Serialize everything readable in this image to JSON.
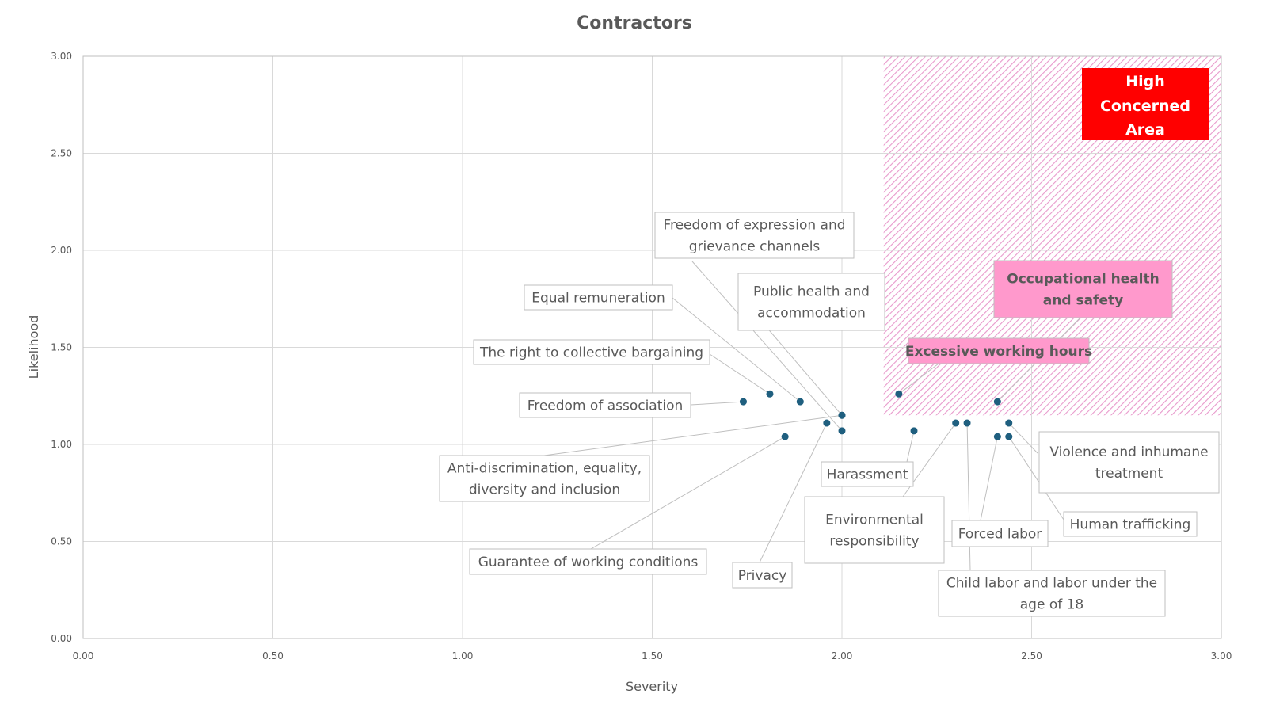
{
  "chart_data": {
    "type": "scatter",
    "title": "Contractors",
    "xlabel": "Severity",
    "ylabel": "Likelihood",
    "xlim": [
      0,
      3
    ],
    "ylim": [
      0,
      3
    ],
    "x_ticks": [
      "0.00",
      "0.50",
      "1.00",
      "1.50",
      "2.00",
      "2.50",
      "3.00"
    ],
    "y_ticks": [
      "0.00",
      "0.50",
      "1.00",
      "1.50",
      "2.00",
      "2.50",
      "3.00"
    ],
    "x_tick_values": [
      0,
      0.5,
      1,
      1.5,
      2,
      2.5,
      3
    ],
    "y_tick_values": [
      0,
      0.5,
      1,
      1.5,
      2,
      2.5,
      3
    ],
    "grid": true,
    "marker_color": "#1f5f7f",
    "high_concern_region": {
      "label_lines": [
        "High",
        "Concerned",
        "Area"
      ],
      "x_range": [
        2.11,
        3.0
      ],
      "y_range": [
        1.15,
        3.0
      ],
      "hatch_color": "#e899cc",
      "label_color": "#ff0000"
    },
    "highlight_color": "#ff99cc",
    "points": [
      {
        "name": "Freedom of association",
        "lines": [
          "Freedom of association"
        ],
        "x": 1.74,
        "y": 1.22,
        "highlight": false
      },
      {
        "name": "The right to collective bargaining",
        "lines": [
          "The right to collective bargaining"
        ],
        "x": 1.81,
        "y": 1.26,
        "highlight": false
      },
      {
        "name": "Equal remuneration",
        "lines": [
          "Equal remuneration"
        ],
        "x": 1.89,
        "y": 1.22,
        "highlight": false
      },
      {
        "name": "Public health and accommodation",
        "lines": [
          "Public health and",
          "accommodation"
        ],
        "x": 2.0,
        "y": 1.15,
        "highlight": false
      },
      {
        "name": "Anti-discrimination, equality, diversity and inclusion",
        "lines": [
          "Anti-discrimination, equality,",
          "diversity and inclusion"
        ],
        "x": 2.0,
        "y": 1.15,
        "highlight": false
      },
      {
        "name": "Privacy",
        "lines": [
          "Privacy"
        ],
        "x": 1.96,
        "y": 1.11,
        "highlight": false
      },
      {
        "name": "Freedom of expression and grievance channels",
        "lines": [
          "Freedom of expression and",
          "grievance channels"
        ],
        "x": 2.0,
        "y": 1.07,
        "highlight": false
      },
      {
        "name": "Guarantee of working conditions",
        "lines": [
          "Guarantee of working conditions"
        ],
        "x": 1.85,
        "y": 1.04,
        "highlight": false
      },
      {
        "name": "Excessive working hours",
        "lines": [
          "Excessive working hours"
        ],
        "x": 2.15,
        "y": 1.26,
        "highlight": true
      },
      {
        "name": "Occupational health and safety",
        "lines": [
          "Occupational health",
          "and safety"
        ],
        "x": 2.41,
        "y": 1.22,
        "highlight": true
      },
      {
        "name": "Harassment",
        "lines": [
          "Harassment"
        ],
        "x": 2.19,
        "y": 1.07,
        "highlight": false
      },
      {
        "name": "Environmental responsibility",
        "lines": [
          "Environmental",
          "responsibility"
        ],
        "x": 2.3,
        "y": 1.11,
        "highlight": false
      },
      {
        "name": "Child labor and labor under the age of 18",
        "lines": [
          "Child labor and labor under the",
          "age of 18"
        ],
        "x": 2.33,
        "y": 1.11,
        "highlight": false
      },
      {
        "name": "Violence and inhumane treatment",
        "lines": [
          "Violence and inhumane",
          "treatment"
        ],
        "x": 2.44,
        "y": 1.11,
        "highlight": false
      },
      {
        "name": "Forced labor",
        "lines": [
          "Forced labor"
        ],
        "x": 2.41,
        "y": 1.04,
        "highlight": false
      },
      {
        "name": "Human trafficking",
        "lines": [
          "Human trafficking"
        ],
        "x": 2.44,
        "y": 1.04,
        "highlight": false
      }
    ]
  }
}
